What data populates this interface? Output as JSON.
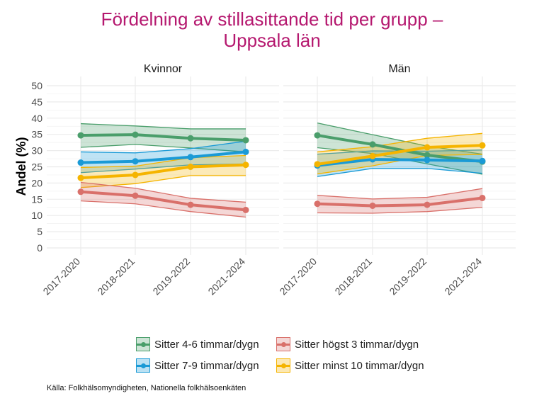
{
  "chart_data": {
    "type": "line",
    "title": "Fördelning av stillasittande tid per grupp –\nUppsala län",
    "title_lines": [
      "Fördelning av stillasittande tid per grupp –",
      "Uppsala län"
    ],
    "ylabel": "Andel (%)",
    "xlabel": "",
    "ylim": [
      0,
      50
    ],
    "yticks": [
      "0",
      "5",
      "10",
      "15",
      "20",
      "25",
      "30",
      "35",
      "40",
      "45",
      "50"
    ],
    "categories": [
      "2017-2020",
      "2018-2021",
      "2019-2022",
      "2021-2024"
    ],
    "grid": true,
    "legend_position": "bottom",
    "caption": "Källa: Folkhälsomyndigheten, Nationella folkhälsoenkäten",
    "legend": [
      {
        "key": "s46",
        "label": "Sitter 4-6 timmar/dygn",
        "color": "#4a9e6b"
      },
      {
        "key": "s3",
        "label": "Sitter högst 3 timmar/dygn",
        "color": "#d9706a"
      },
      {
        "key": "s79",
        "label": "Sitter 7-9 timmar/dygn",
        "color": "#1a9ad6"
      },
      {
        "key": "s10",
        "label": "Sitter minst 10 timmar/dygn",
        "color": "#f5b400"
      }
    ],
    "panels": [
      {
        "name": "Kvinnor",
        "series": [
          {
            "key": "s46",
            "values": [
              34.7,
              34.9,
              33.8,
              33.2
            ],
            "lower": [
              31.0,
              31.9,
              30.8,
              29.6
            ],
            "upper": [
              38.3,
              37.6,
              36.7,
              36.7
            ]
          },
          {
            "key": "s79",
            "values": [
              26.3,
              26.7,
              28.0,
              29.6
            ],
            "lower": [
              23.2,
              24.3,
              25.6,
              25.9
            ],
            "upper": [
              29.6,
              29.3,
              30.6,
              32.9
            ]
          },
          {
            "key": "s10",
            "values": [
              21.6,
              22.5,
              25.0,
              25.6
            ],
            "lower": [
              18.6,
              19.8,
              22.3,
              22.3
            ],
            "upper": [
              24.8,
              25.2,
              27.8,
              28.5
            ]
          },
          {
            "key": "s3",
            "values": [
              17.3,
              16.1,
              13.3,
              11.7
            ],
            "lower": [
              14.5,
              13.6,
              11.2,
              9.5
            ],
            "upper": [
              20.2,
              18.4,
              15.3,
              14.1
            ]
          }
        ]
      },
      {
        "name": "Män",
        "series": [
          {
            "key": "s46",
            "values": [
              34.7,
              31.9,
              28.6,
              26.6
            ],
            "lower": [
              30.9,
              29.1,
              25.9,
              22.7
            ],
            "upper": [
              38.5,
              34.9,
              31.4,
              28.9
            ]
          },
          {
            "key": "s79",
            "values": [
              25.4,
              27.3,
              27.1,
              26.8
            ],
            "lower": [
              22.0,
              24.5,
              24.5,
              23.0
            ],
            "upper": [
              28.9,
              29.9,
              29.8,
              30.2
            ]
          },
          {
            "key": "s10",
            "values": [
              25.8,
              28.3,
              31.0,
              31.6
            ],
            "lower": [
              22.8,
              25.3,
              28.5,
              28.8
            ],
            "upper": [
              29.6,
              31.2,
              33.8,
              35.3
            ]
          },
          {
            "key": "s3",
            "values": [
              13.6,
              13.0,
              13.3,
              15.4
            ],
            "lower": [
              10.8,
              10.7,
              11.2,
              12.5
            ],
            "upper": [
              16.2,
              15.1,
              15.6,
              18.3
            ]
          }
        ]
      }
    ]
  }
}
